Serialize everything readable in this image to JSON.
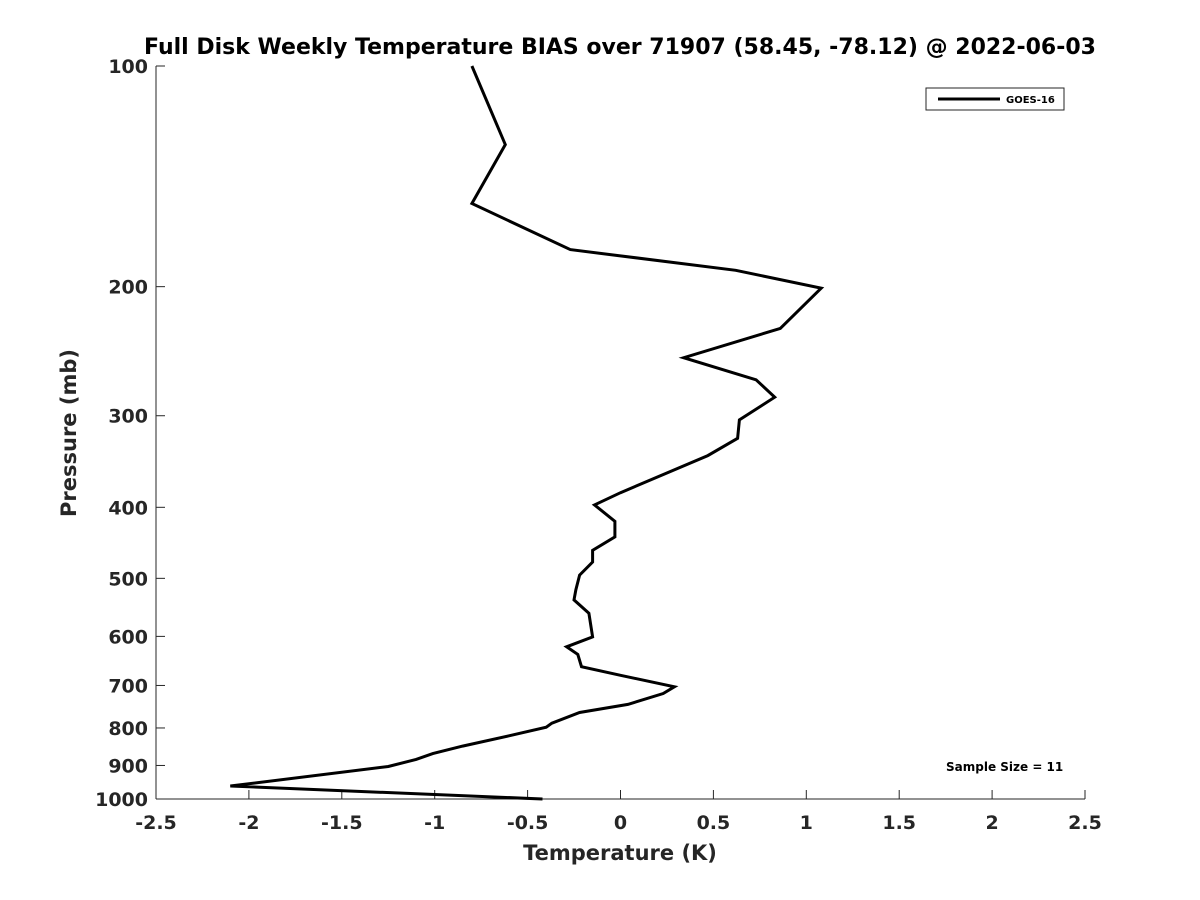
{
  "chart_data": {
    "type": "line",
    "title": "Full Disk Weekly Temperature BIAS over 71907 (58.45, -78.12) @ 2022-06-03",
    "xlabel": "Temperature (K)",
    "ylabel": "Pressure (mb)",
    "xlim": [
      -2.5,
      2.5
    ],
    "ylim": [
      100,
      1000
    ],
    "y_scale": "log",
    "y_reversed": true,
    "x_ticks": [
      "-2.5",
      "-2",
      "-1.5",
      "-1",
      "-0.5",
      "0",
      "0.5",
      "1",
      "1.5",
      "2",
      "2.5"
    ],
    "x_tick_values": [
      -2.5,
      -2,
      -1.5,
      -1,
      -0.5,
      0,
      0.5,
      1,
      1.5,
      2,
      2.5
    ],
    "y_ticks": [
      "100",
      "200",
      "300",
      "400",
      "500",
      "600",
      "700",
      "800",
      "900",
      "1000"
    ],
    "y_tick_values": [
      100,
      200,
      300,
      400,
      500,
      600,
      700,
      800,
      900,
      1000
    ],
    "grid": false,
    "legend_position": "top-right",
    "annotation": "Sample Size = 11",
    "series": [
      {
        "name": "GOES-16",
        "color": "#000000",
        "x": [
          -0.8,
          -0.62,
          -0.8,
          -0.27,
          0.62,
          1.08,
          0.86,
          0.34,
          0.73,
          0.83,
          0.64,
          0.63,
          0.47,
          0.24,
          0.0,
          -0.14,
          -0.03,
          -0.03,
          -0.15,
          -0.15,
          -0.22,
          -0.24,
          -0.25,
          -0.17,
          -0.15,
          -0.29,
          -0.23,
          -0.21,
          0.0,
          0.29,
          0.23,
          0.04,
          -0.22,
          -0.37,
          -0.4,
          -0.6,
          -0.85,
          -1.01,
          -1.1,
          -1.25,
          -2.1,
          -0.42
        ],
        "y": [
          100,
          128,
          154,
          178,
          190,
          201,
          228,
          250,
          268,
          283,
          304,
          322,
          340,
          360,
          382,
          397,
          418,
          439,
          458,
          475,
          495,
          518,
          535,
          558,
          601,
          620,
          635,
          660,
          678,
          703,
          718,
          743,
          762,
          788,
          798,
          820,
          847,
          867,
          883,
          903,
          960,
          1000
        ]
      }
    ]
  }
}
